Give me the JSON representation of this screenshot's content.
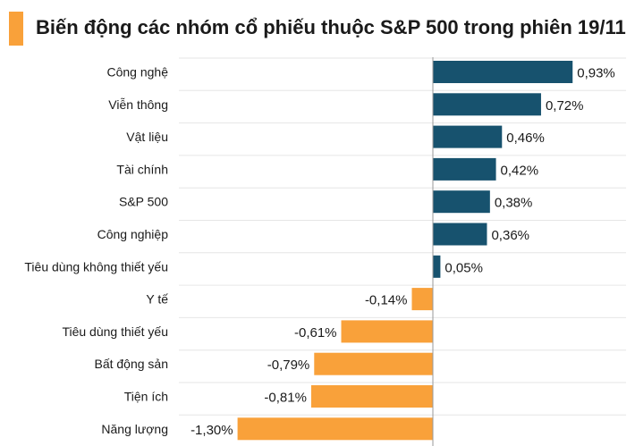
{
  "title": "Biến động các nhóm cổ phiếu thuộc S&P 500 trong phiên 19/11",
  "colors": {
    "accent": "#f9a13a",
    "positive": "#17526e",
    "negative": "#f9a13a",
    "gridline": "#e6e6e6",
    "axis": "#999999"
  },
  "chart_data": {
    "type": "bar",
    "orientation": "horizontal",
    "title": "Biến động các nhóm cổ phiếu thuộc S&P 500 trong phiên 19/11",
    "categories": [
      "Công nghệ",
      "Viễn thông",
      "Vật liệu",
      "Tài chính",
      "S&P 500",
      "Công nghiệp",
      "Tiêu dùng không thiết yếu",
      "Y tế",
      "Tiêu dùng thiết yếu",
      "Bất động sản",
      "Tiện ích",
      "Năng lượng"
    ],
    "values": [
      0.93,
      0.72,
      0.46,
      0.42,
      0.38,
      0.36,
      0.05,
      -0.14,
      -0.61,
      -0.79,
      -0.81,
      -1.3
    ],
    "value_labels": [
      "0,93%",
      "0,72%",
      "0,46%",
      "0,42%",
      "0,38%",
      "0,36%",
      "0,05%",
      "-0,14%",
      "-0,61%",
      "-0,79%",
      "-0,81%",
      "-1,30%"
    ],
    "xlabel": "",
    "ylabel": "",
    "xlim": [
      -1.3,
      1.0
    ],
    "grid": true,
    "legend": "none"
  }
}
